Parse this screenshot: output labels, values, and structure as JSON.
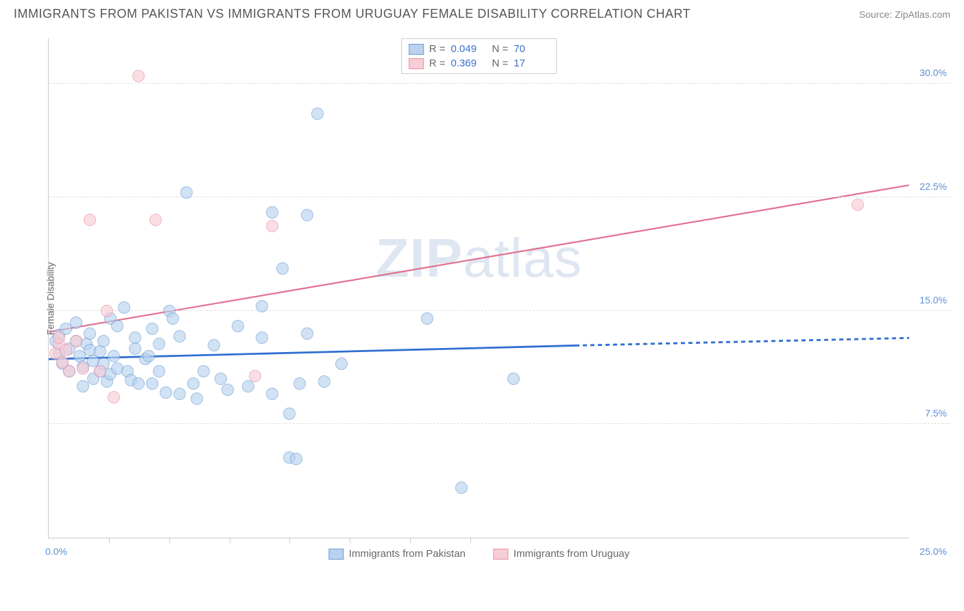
{
  "title": "IMMIGRANTS FROM PAKISTAN VS IMMIGRANTS FROM URUGUAY FEMALE DISABILITY CORRELATION CHART",
  "source": "Source: ZipAtlas.com",
  "watermark_a": "ZIP",
  "watermark_b": "atlas",
  "ylabel": "Female Disability",
  "chart": {
    "type": "scatter",
    "xlim": [
      0,
      25
    ],
    "ylim": [
      0,
      33
    ],
    "x_ticks_pct": [
      0,
      7,
      14,
      21,
      28,
      35,
      42,
      49
    ],
    "x_label_min": "0.0%",
    "x_label_max": "25.0%",
    "y_gridlines": [
      7.5,
      15.0,
      22.5,
      30.0
    ],
    "y_tick_labels": [
      "7.5%",
      "15.0%",
      "22.5%",
      "30.0%"
    ],
    "background_color": "#ffffff",
    "grid_color": "#dddddd",
    "point_radius": 9,
    "point_border_width": 1,
    "series": [
      {
        "name": "Immigrants from Pakistan",
        "fill": "#b9d3ef",
        "stroke": "#6a9cd4",
        "fill_opacity": 0.65,
        "R": "0.049",
        "N": "70",
        "trend": {
          "x1": 0,
          "y1": 11.8,
          "x2_solid": 15.3,
          "y2_solid": 12.7,
          "x2": 25,
          "y2": 13.2,
          "color": "#2f6fd0",
          "width": 2.8
        },
        "points": [
          [
            0.2,
            13.0
          ],
          [
            0.3,
            12.2
          ],
          [
            0.3,
            13.4
          ],
          [
            0.4,
            11.5
          ],
          [
            0.5,
            13.8
          ],
          [
            0.6,
            12.5
          ],
          [
            0.6,
            11.0
          ],
          [
            0.8,
            14.2
          ],
          [
            0.8,
            13.0
          ],
          [
            0.9,
            12.0
          ],
          [
            1.0,
            11.3
          ],
          [
            1.0,
            10.0
          ],
          [
            1.1,
            12.8
          ],
          [
            1.2,
            13.5
          ],
          [
            1.2,
            12.4
          ],
          [
            1.3,
            10.5
          ],
          [
            1.3,
            11.7
          ],
          [
            1.5,
            11.0
          ],
          [
            1.5,
            12.3
          ],
          [
            1.6,
            13.0
          ],
          [
            1.6,
            11.5
          ],
          [
            1.7,
            10.3
          ],
          [
            1.8,
            14.5
          ],
          [
            1.8,
            10.8
          ],
          [
            1.9,
            12.0
          ],
          [
            2.0,
            11.2
          ],
          [
            2.0,
            14.0
          ],
          [
            2.2,
            15.2
          ],
          [
            2.3,
            11.0
          ],
          [
            2.4,
            10.4
          ],
          [
            2.5,
            13.2
          ],
          [
            2.5,
            12.5
          ],
          [
            2.6,
            10.2
          ],
          [
            2.8,
            11.8
          ],
          [
            2.9,
            12.0
          ],
          [
            3.0,
            10.2
          ],
          [
            3.0,
            13.8
          ],
          [
            3.2,
            12.8
          ],
          [
            3.2,
            11.0
          ],
          [
            3.4,
            9.6
          ],
          [
            3.5,
            15.0
          ],
          [
            3.6,
            14.5
          ],
          [
            3.8,
            9.5
          ],
          [
            3.8,
            13.3
          ],
          [
            4.0,
            22.8
          ],
          [
            4.2,
            10.2
          ],
          [
            4.3,
            9.2
          ],
          [
            4.5,
            11.0
          ],
          [
            4.8,
            12.7
          ],
          [
            5.0,
            10.5
          ],
          [
            5.2,
            9.8
          ],
          [
            5.5,
            14.0
          ],
          [
            5.8,
            10.0
          ],
          [
            6.2,
            13.2
          ],
          [
            6.2,
            15.3
          ],
          [
            6.5,
            9.5
          ],
          [
            6.5,
            21.5
          ],
          [
            6.8,
            17.8
          ],
          [
            7.0,
            5.3
          ],
          [
            7.0,
            8.2
          ],
          [
            7.2,
            5.2
          ],
          [
            7.3,
            10.2
          ],
          [
            7.5,
            21.3
          ],
          [
            7.5,
            13.5
          ],
          [
            7.8,
            28.0
          ],
          [
            8.0,
            10.3
          ],
          [
            8.5,
            11.5
          ],
          [
            11.0,
            14.5
          ],
          [
            12.0,
            3.3
          ],
          [
            13.5,
            10.5
          ]
        ]
      },
      {
        "name": "Immigrants from Uruguay",
        "fill": "#f7cdd6",
        "stroke": "#e890a4",
        "fill_opacity": 0.65,
        "R": "0.369",
        "N": "17",
        "trend": {
          "x1": 0,
          "y1": 13.6,
          "x2_solid": 25,
          "y2_solid": 23.3,
          "x2": 25,
          "y2": 23.3,
          "color": "#e36f8f",
          "width": 2.2
        },
        "points": [
          [
            0.2,
            12.2
          ],
          [
            0.3,
            12.8
          ],
          [
            0.3,
            13.2
          ],
          [
            0.4,
            11.6
          ],
          [
            0.5,
            12.4
          ],
          [
            0.6,
            11.0
          ],
          [
            0.8,
            13.0
          ],
          [
            1.0,
            11.2
          ],
          [
            1.2,
            21.0
          ],
          [
            1.5,
            11.0
          ],
          [
            1.7,
            15.0
          ],
          [
            1.9,
            9.3
          ],
          [
            2.6,
            30.5
          ],
          [
            3.1,
            21.0
          ],
          [
            6.0,
            10.7
          ],
          [
            6.5,
            20.6
          ],
          [
            23.5,
            22.0
          ]
        ]
      }
    ]
  },
  "legend_rows": [
    {
      "swatch_fill": "#b9d3ef",
      "swatch_stroke": "#6a9cd4",
      "R_label": "R =",
      "R": "0.049",
      "N_label": "N =",
      "N": "70"
    },
    {
      "swatch_fill": "#f7cdd6",
      "swatch_stroke": "#e890a4",
      "R_label": "R =",
      "R": "0.369",
      "N_label": "N =",
      "N": "17"
    }
  ],
  "bottom_legend": [
    {
      "swatch_fill": "#b9d3ef",
      "swatch_stroke": "#6a9cd4",
      "label": "Immigrants from Pakistan"
    },
    {
      "swatch_fill": "#f7cdd6",
      "swatch_stroke": "#e890a4",
      "label": "Immigrants from Uruguay"
    }
  ]
}
